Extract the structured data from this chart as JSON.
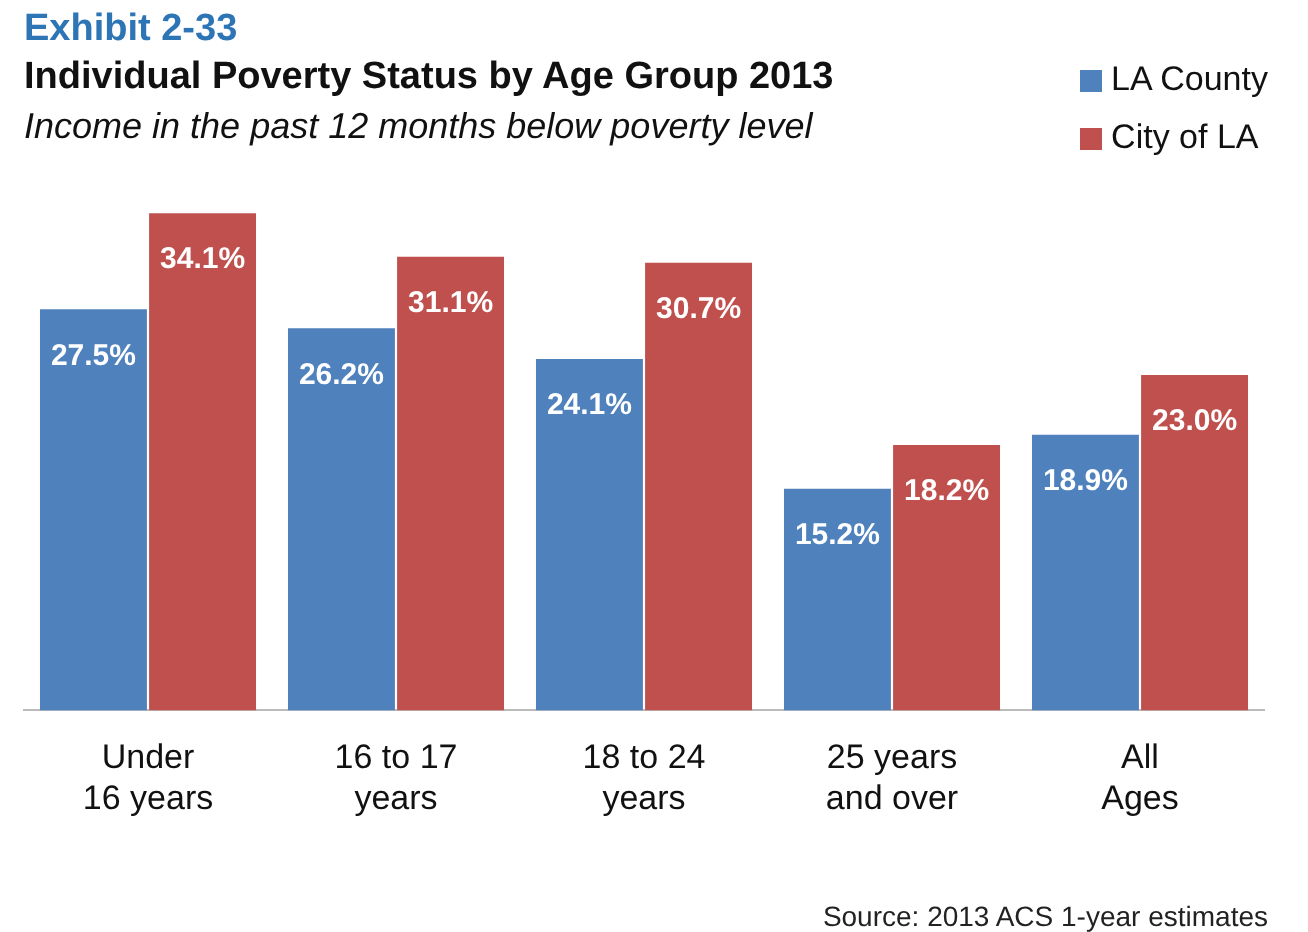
{
  "chart_data": {
    "type": "bar",
    "title": "Individual Poverty Status by Age Group 2013",
    "subtitle": "Income in the past 12 months below poverty level",
    "annotations": [
      "Exhibit 2-33",
      "Source: 2013 ACS 1-year estimates"
    ],
    "categories": [
      "Under\n16 years",
      "16 to 17\nyears",
      "18 to 24\nyears",
      "25 years\nand over",
      "All\nAges"
    ],
    "series": [
      {
        "name": "LA County",
        "color": "#4f81bd",
        "values": [
          27.5,
          26.2,
          24.1,
          15.2,
          18.9
        ],
        "value_labels": [
          "27.5%",
          "26.2%",
          "24.1%",
          "15.2%",
          "18.9%"
        ]
      },
      {
        "name": "City of LA",
        "color": "#c0504d",
        "values": [
          34.1,
          31.1,
          30.7,
          18.2,
          23.0
        ],
        "value_labels": [
          "34.1%",
          "31.1%",
          "30.7%",
          "18.2%",
          "23.0%"
        ]
      }
    ],
    "legend": "top right",
    "grid": false,
    "tick_labels": "x"
  }
}
